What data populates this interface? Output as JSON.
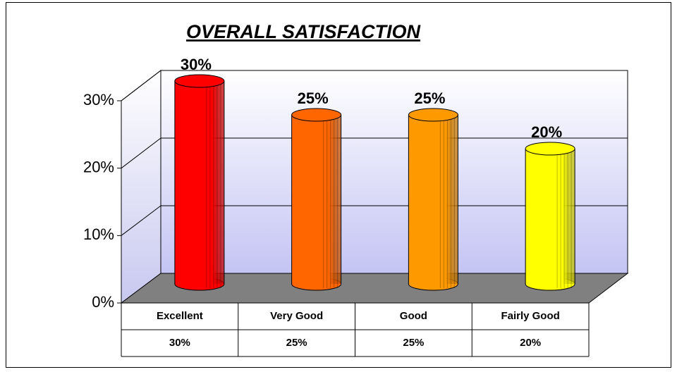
{
  "chart_data": {
    "type": "bar3d",
    "title": "OVERALL SATISFACTION",
    "categories": [
      "Excellent",
      "Very Good",
      "Good",
      "Fairly Good"
    ],
    "values": [
      30,
      25,
      25,
      20
    ],
    "value_labels": [
      "30%",
      "25%",
      "25%",
      "20%"
    ],
    "colors": [
      "#ff0000",
      "#ff6600",
      "#ff9900",
      "#ffff00"
    ],
    "ylim": [
      0,
      30
    ],
    "yticks": [
      {
        "value": 0,
        "label": "0%"
      },
      {
        "value": 10,
        "label": "10%"
      },
      {
        "value": 20,
        "label": "20%"
      },
      {
        "value": 30,
        "label": "30%"
      }
    ],
    "grid": true
  }
}
